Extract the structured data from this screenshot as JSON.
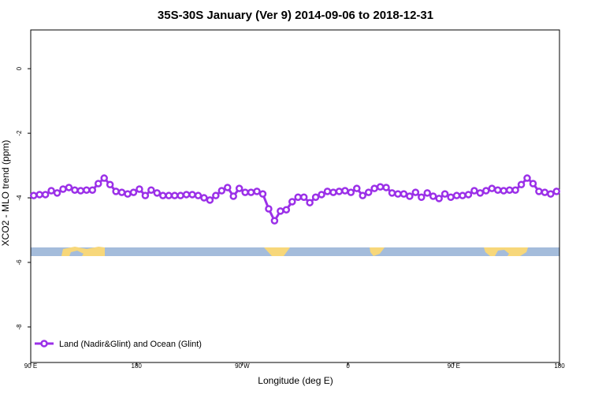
{
  "chart_data": {
    "type": "line",
    "title": "35S-30S January (Ver 9)   2014-09-06 to 2018-12-31",
    "x_label": "Longitude (deg E)",
    "y_label": "XCO2 - MLO trend (ppm)",
    "x": [
      92.5,
      97.5,
      102.5,
      107.5,
      112.5,
      117.5,
      122.5,
      127.5,
      132.5,
      137.5,
      142.5,
      147.5,
      152.5,
      157.5,
      162.5,
      167.5,
      172.5,
      177.5,
      182.5,
      187.5,
      192.5,
      197.5,
      202.5,
      207.5,
      212.5,
      217.5,
      222.5,
      227.5,
      232.5,
      237.5,
      242.5,
      247.5,
      252.5,
      257.5,
      262.5,
      267.5,
      272.5,
      277.5,
      282.5,
      287.5,
      292.5,
      297.5,
      302.5,
      307.5,
      312.5,
      317.5,
      322.5,
      327.5,
      332.5,
      337.5,
      342.5,
      347.5,
      352.5,
      357.5,
      362.5,
      367.5,
      372.5,
      377.5,
      382.5,
      387.5,
      392.5,
      397.5,
      402.5,
      407.5,
      412.5,
      417.5,
      422.5,
      427.5,
      432.5,
      437.5,
      442.5,
      447.5,
      452.5,
      457.5,
      462.5,
      467.5,
      472.5,
      477.5,
      482.5,
      487.5,
      492.5,
      497.5,
      502.5,
      507.5,
      512.5,
      517.5,
      522.5,
      527.5,
      532.5,
      537.5
    ],
    "series": [
      {
        "name": "Land (Nadir&Glint) and Ocean (Glint)",
        "color": "#9b30e8",
        "values": [
          -3.93,
          -3.9,
          -3.9,
          -3.78,
          -3.85,
          -3.73,
          -3.68,
          -3.76,
          -3.78,
          -3.76,
          -3.76,
          -3.56,
          -3.39,
          -3.59,
          -3.8,
          -3.83,
          -3.88,
          -3.83,
          -3.73,
          -3.93,
          -3.76,
          -3.85,
          -3.93,
          -3.93,
          -3.93,
          -3.93,
          -3.9,
          -3.9,
          -3.93,
          -4.0,
          -4.07,
          -3.93,
          -3.78,
          -3.68,
          -3.95,
          -3.71,
          -3.83,
          -3.83,
          -3.8,
          -3.88,
          -4.34,
          -4.71,
          -4.41,
          -4.37,
          -4.12,
          -3.98,
          -3.98,
          -4.15,
          -3.98,
          -3.9,
          -3.8,
          -3.83,
          -3.8,
          -3.78,
          -3.83,
          -3.71,
          -3.93,
          -3.83,
          -3.71,
          -3.66,
          -3.68,
          -3.85,
          -3.88,
          -3.88,
          -3.95,
          -3.83,
          -3.98,
          -3.85,
          -3.95,
          -4.02,
          -3.88,
          -3.98,
          -3.93,
          -3.93,
          -3.9,
          -3.78,
          -3.85,
          -3.78,
          -3.71,
          -3.76,
          -3.78,
          -3.76,
          -3.76,
          -3.59,
          -3.39,
          -3.56,
          -3.8,
          -3.83,
          -3.88,
          -3.8
        ]
      }
    ],
    "xlim": [
      90,
      540
    ],
    "xticks": [
      {
        "value": 90,
        "label": "90 E"
      },
      180,
      {
        "value": 270,
        "label": "90 W"
      },
      {
        "value": 360,
        "label": "0"
      },
      {
        "value": 450,
        "label": "90 E"
      },
      {
        "value": 540,
        "label": "180"
      }
    ],
    "ylim": [
      -9.1,
      1.2
    ],
    "yticks": [
      -8,
      -6,
      -4,
      -2,
      0
    ],
    "legend": "bottom-left"
  }
}
